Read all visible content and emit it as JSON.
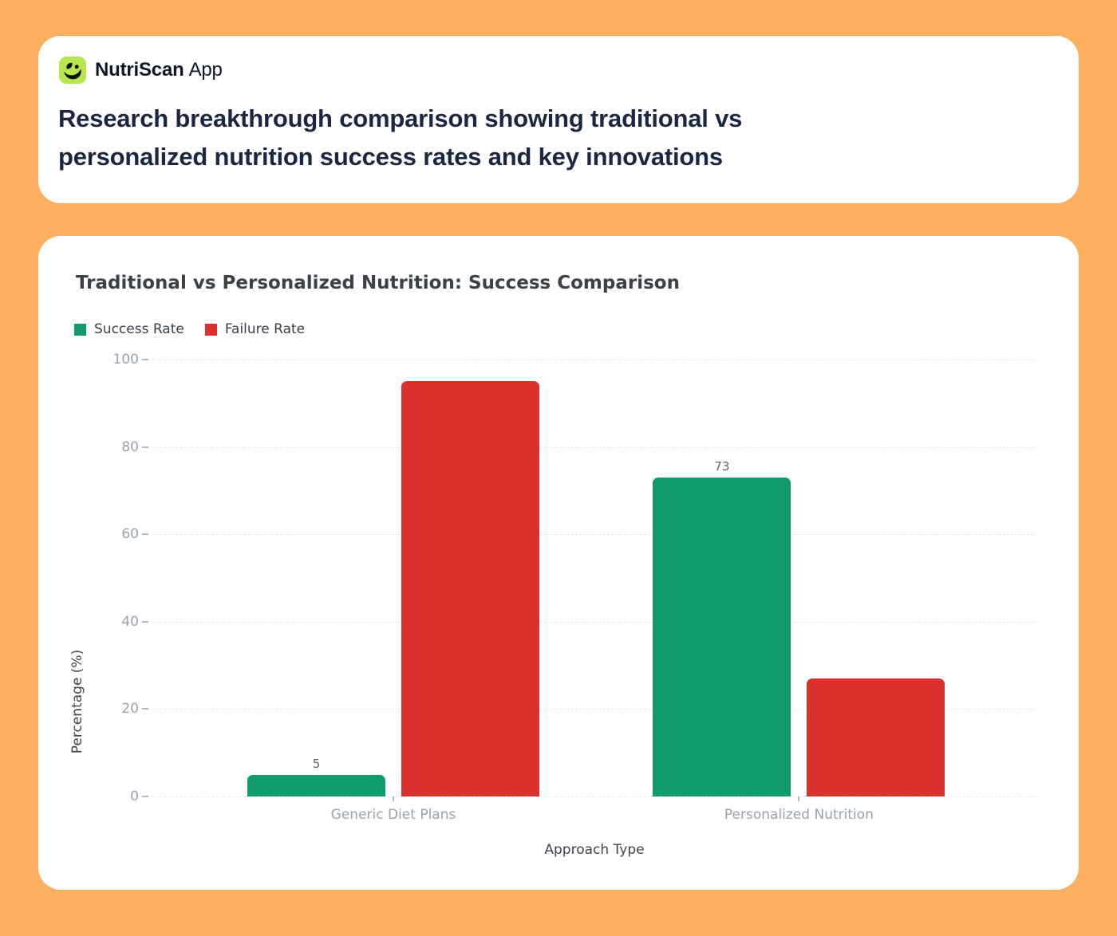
{
  "colors": {
    "background": "#fab05f",
    "card": "#ffffff",
    "brand_logo_green": "#b7e64d",
    "headline_navy": "#1c2541",
    "success_green": "#109b6d",
    "failure_red": "#dc302d"
  },
  "app": {
    "brand_name": "NutriScan",
    "brand_suffix": "App",
    "logo_icon": "nutriscan-leaf-face-icon"
  },
  "header": {
    "title_line1": "Research breakthrough comparison showing traditional vs",
    "title_line2": "personalized nutrition success rates and key innovations"
  },
  "chart_data": {
    "type": "bar",
    "title": "Traditional vs Personalized Nutrition: Success Comparison",
    "categories": [
      "Generic Diet Plans",
      "Personalized Nutrition"
    ],
    "series": [
      {
        "name": "Success Rate",
        "color": "#109b6d",
        "values": [
          5,
          73
        ],
        "show_value_labels": true
      },
      {
        "name": "Failure Rate",
        "color": "#dc302d",
        "values": [
          95,
          27
        ],
        "show_value_labels": false
      }
    ],
    "value_labels_shown": [
      "5",
      "73"
    ],
    "xlabel": "Approach Type",
    "ylabel": "Percentage (%)",
    "ylim": [
      0,
      100
    ],
    "yticks": [
      0,
      20,
      40,
      60,
      80,
      100
    ],
    "grid": "horizontal-dashed",
    "legend_position": "top-left"
  }
}
